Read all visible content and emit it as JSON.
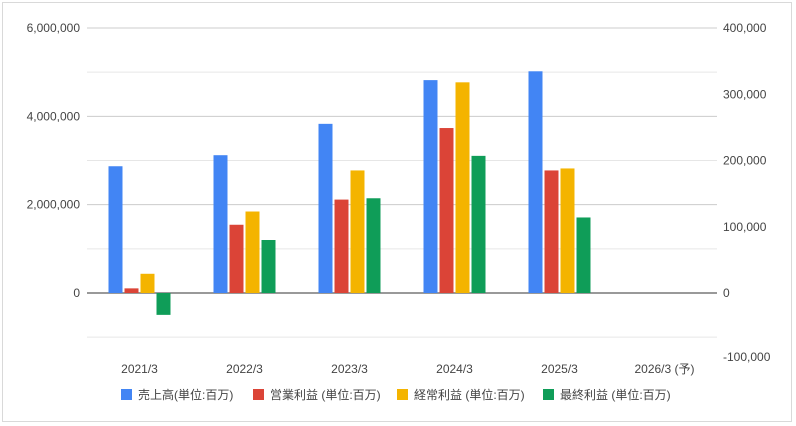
{
  "chart_data": {
    "type": "bar",
    "categories": [
      "2021/3",
      "2022/3",
      "2023/3",
      "2024/3",
      "2025/3",
      "2026/3 (予)"
    ],
    "left_axis": {
      "ticks": [
        "6,000,000",
        "4,000,000",
        "2,000,000",
        "0"
      ],
      "ylim": [
        -1000000,
        6000000
      ]
    },
    "right_axis": {
      "ticks": [
        "400,000",
        "300,000",
        "200,000",
        "100,000",
        "0",
        "-100,000"
      ],
      "ylim": [
        -100000,
        400000
      ]
    },
    "series": [
      {
        "name": "売上高(単位:百万)",
        "color": "#4285F4",
        "axis": "left",
        "values": [
          2870000,
          3120000,
          3830000,
          4820000,
          5020000,
          null
        ]
      },
      {
        "name": "営業利益 (単位:百万)",
        "color": "#DB4437",
        "axis": "right",
        "values": [
          7000,
          103000,
          141000,
          249000,
          185000,
          null
        ]
      },
      {
        "name": "経常利益 (単位:百万)",
        "color": "#F4B400",
        "axis": "right",
        "values": [
          29000,
          123000,
          185000,
          318000,
          188000,
          null
        ]
      },
      {
        "name": "最終利益 (単位:百万)",
        "color": "#0F9D58",
        "axis": "right",
        "values": [
          -33000,
          80000,
          143000,
          207000,
          114000,
          null
        ]
      }
    ],
    "grid": true,
    "legend_position": "bottom"
  }
}
